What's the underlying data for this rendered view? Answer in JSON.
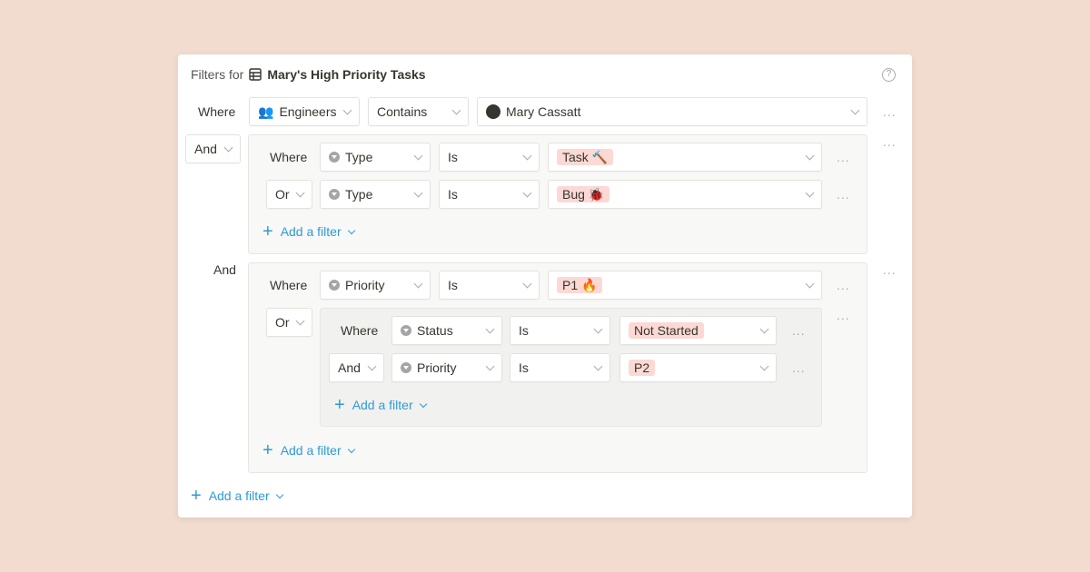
{
  "header": {
    "prefix": "Filters for",
    "title": "Mary's High Priority Tasks",
    "help_icon": "question-circle-icon"
  },
  "colors": {
    "background": "#f2dbcf",
    "accent": "#2e9bd6",
    "tag": "#fcd9d4"
  },
  "row1": {
    "label": "Where",
    "property": "Engineers",
    "operator": "Contains",
    "value": "Mary Cassatt"
  },
  "group1": {
    "conjunction": "And",
    "rows": [
      {
        "label": "Where",
        "property": "Type",
        "operator": "Is",
        "value": "Task 🔨"
      },
      {
        "label": "Or",
        "property": "Type",
        "operator": "Is",
        "value": "Bug 🐞"
      }
    ],
    "add": "Add a filter"
  },
  "group2": {
    "conjunction": "And",
    "rows": [
      {
        "label": "Where",
        "property": "Priority",
        "operator": "Is",
        "value": "P1 🔥"
      }
    ],
    "nested": {
      "conjunction": "Or",
      "rows": [
        {
          "label": "Where",
          "property": "Status",
          "operator": "Is",
          "value": "Not Started"
        },
        {
          "label": "And",
          "property": "Priority",
          "operator": "Is",
          "value": "P2"
        }
      ],
      "add": "Add a filter"
    },
    "add": "Add a filter"
  },
  "add": "Add a filter",
  "more_icon": "..."
}
